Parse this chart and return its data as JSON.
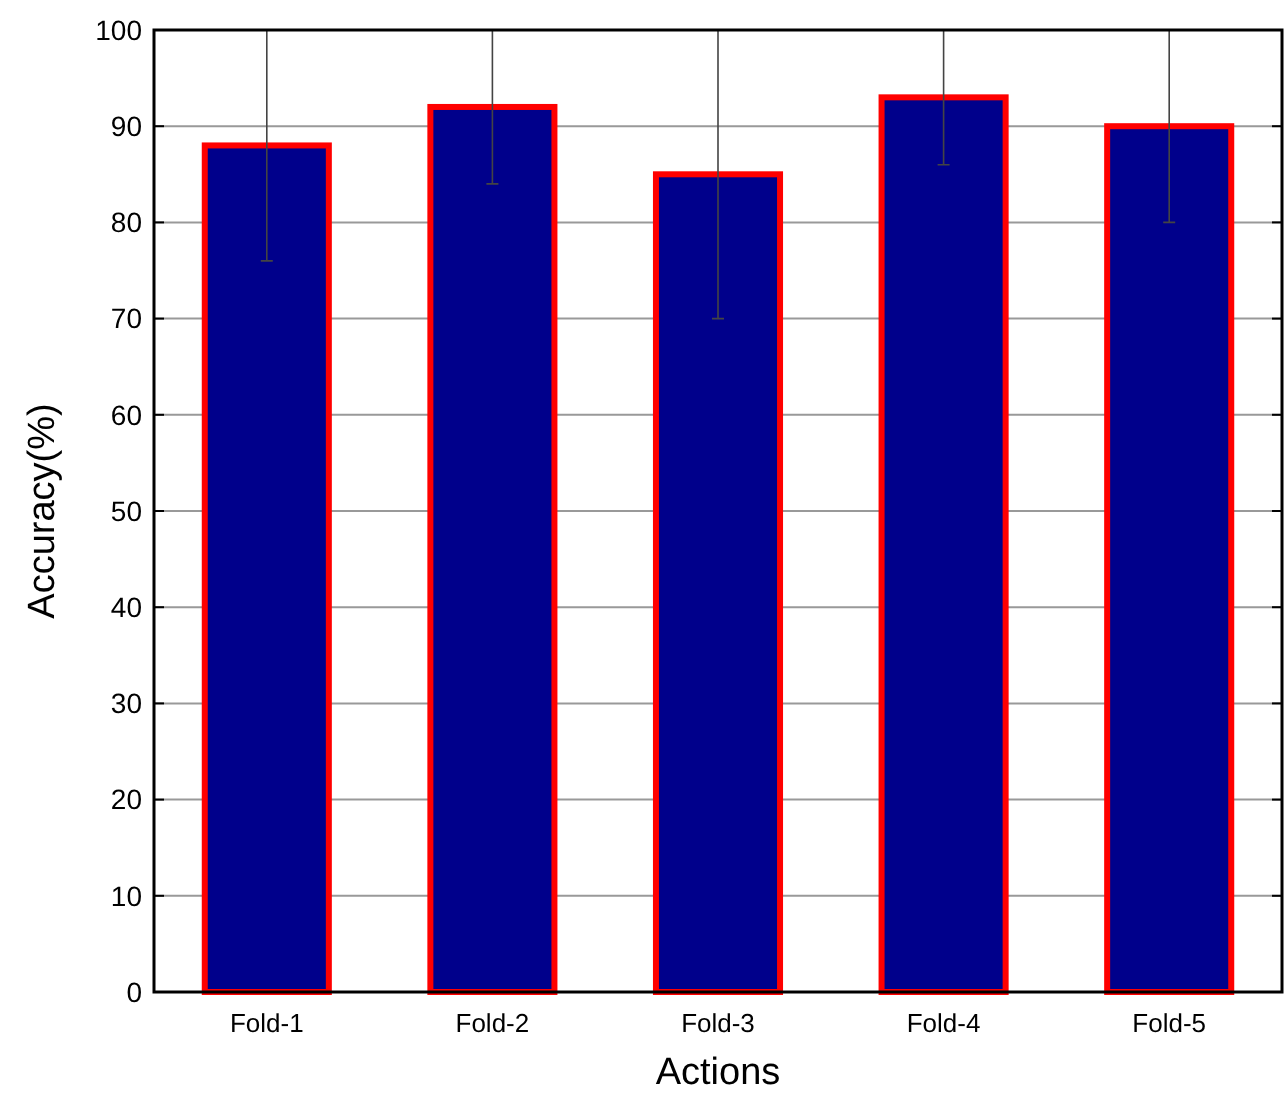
{
  "chart_data": {
    "type": "bar",
    "xlabel": "Actions",
    "ylabel": "Accuracy(%)",
    "categories": [
      "Fold-1",
      "Fold-2",
      "Fold-3",
      "Fold-4",
      "Fold-5"
    ],
    "series": [
      {
        "color": "#00008b",
        "values": [
          88,
          92,
          85,
          93,
          90
        ],
        "errors": [
          12,
          8,
          15,
          7,
          10
        ]
      }
    ],
    "ylim": [
      0,
      100
    ],
    "yticks": [
      0,
      10,
      20,
      30,
      40,
      50,
      60,
      70,
      80,
      90,
      100
    ],
    "grid": "y"
  }
}
